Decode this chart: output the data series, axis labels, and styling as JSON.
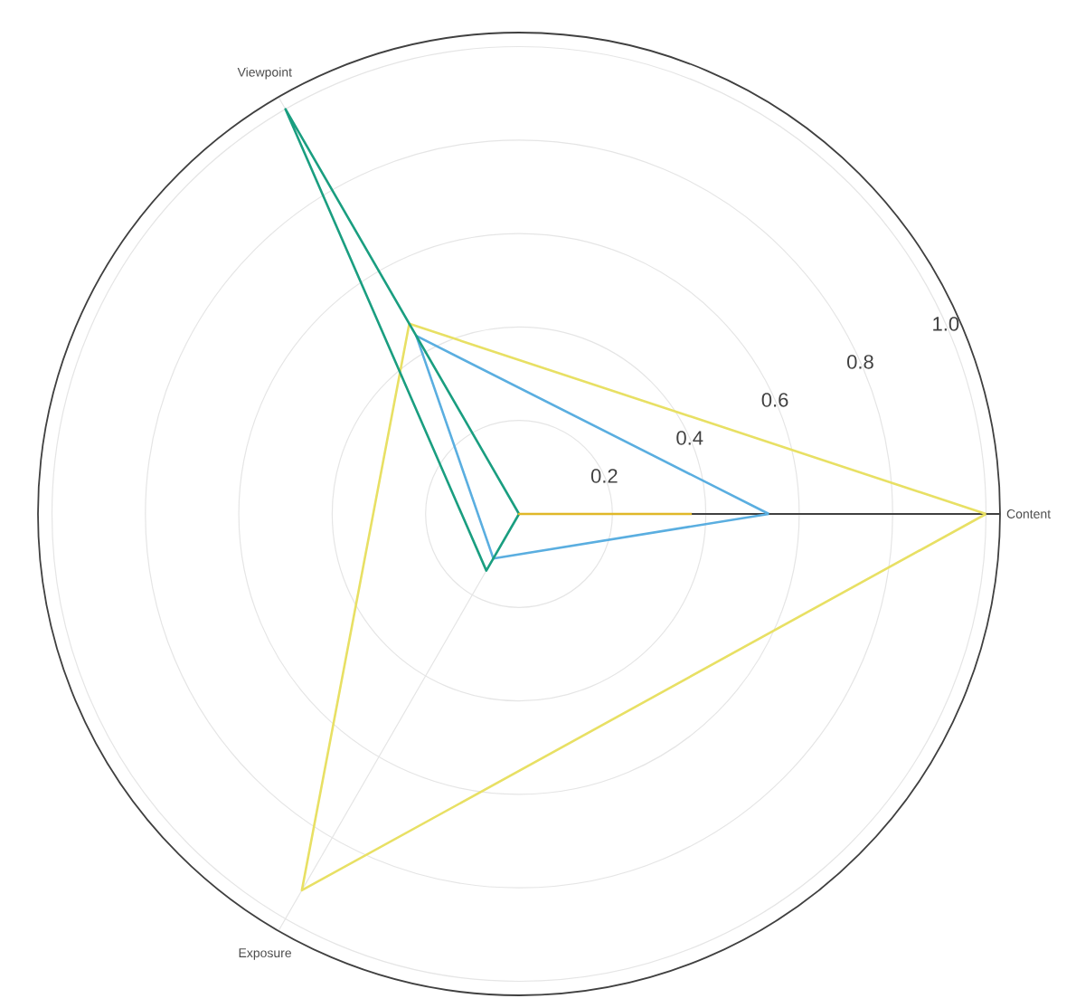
{
  "chart_data": {
    "type": "radar",
    "categories": [
      "Content",
      "Exposure",
      "Viewpoint"
    ],
    "series": [
      {
        "color": "#e8e064",
        "values": [
          1.0,
          0.93,
          0.47
        ]
      },
      {
        "color": "#5aaee0",
        "values": [
          0.535,
          0.11,
          0.44
        ]
      },
      {
        "color": "#1a9e80",
        "values": [
          0.0,
          0.14,
          1.0
        ]
      },
      {
        "color": "#e0b828",
        "values": [
          0.37,
          0.0,
          0.0
        ]
      }
    ],
    "ylim": [
      0,
      1.03
    ],
    "yticks": [
      0.2,
      0.4,
      0.6,
      0.8,
      {
        "value": 1.0,
        "label": "1.0"
      }
    ],
    "grid": true,
    "marker": "none",
    "line_style": "solid"
  }
}
